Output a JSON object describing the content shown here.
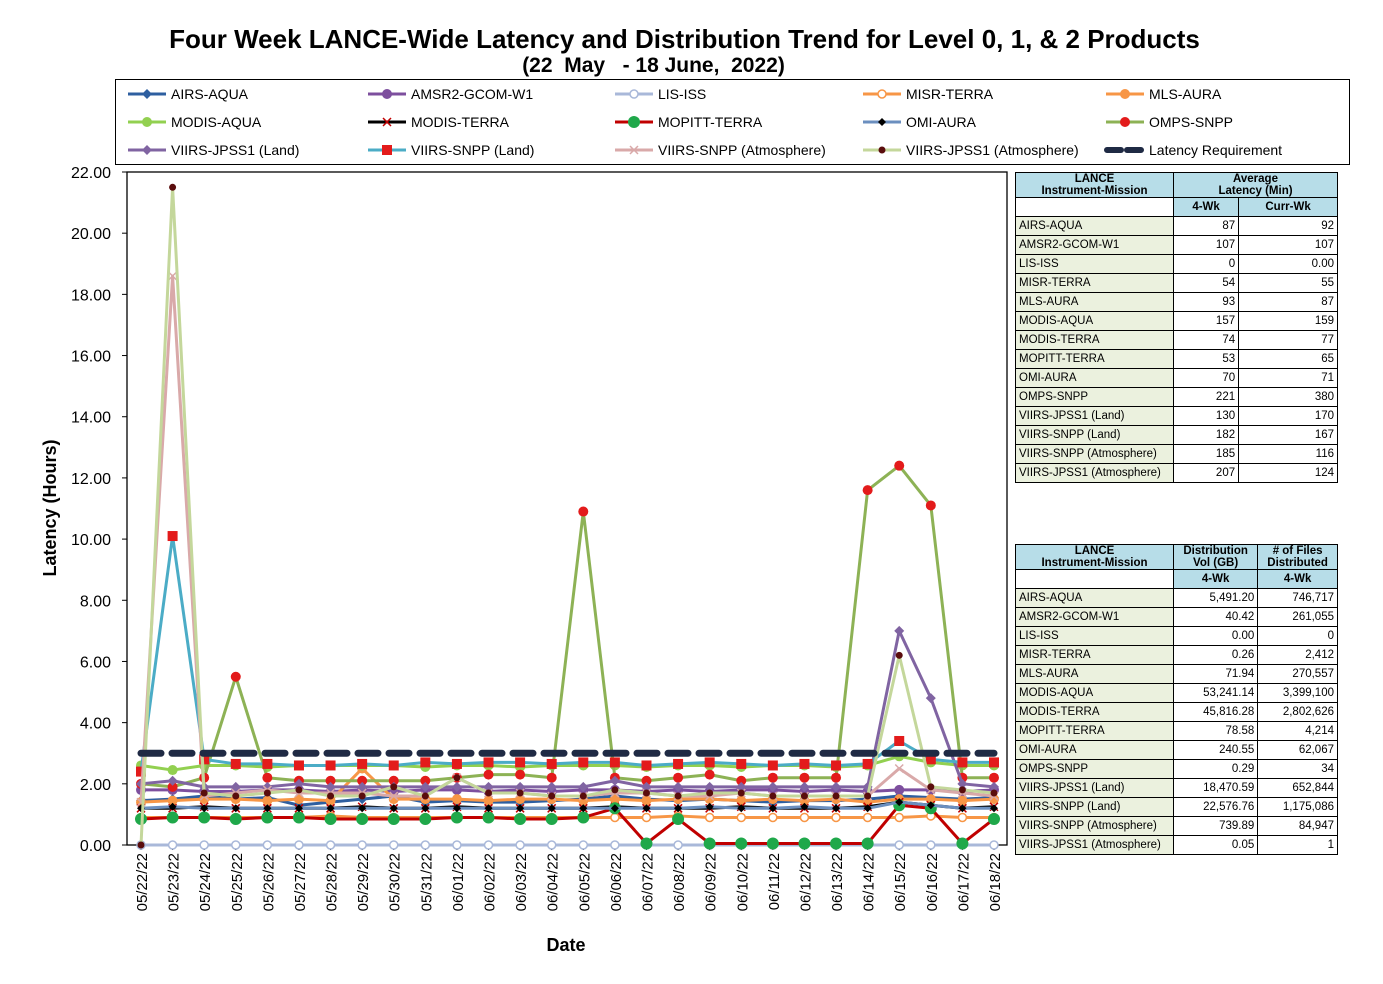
{
  "title": "Four Week LANCE-Wide Latency and Distribution Trend for Level 0, 1, & 2 Products",
  "subtitle": "(22  May   - 18 June,  2022)",
  "chart_data": {
    "type": "line",
    "xlabel": "Date",
    "ylabel": "Latency (Hours)",
    "ylim": [
      0,
      22
    ],
    "yticks": [
      "0.00",
      "2.00",
      "4.00",
      "6.00",
      "8.00",
      "10.00",
      "12.00",
      "14.00",
      "16.00",
      "18.00",
      "20.00",
      "22.00"
    ],
    "categories": [
      "05/22/22",
      "05/23/22",
      "05/24/22",
      "05/25/22",
      "05/26/22",
      "05/27/22",
      "05/28/22",
      "05/29/22",
      "05/30/22",
      "05/31/22",
      "06/01/22",
      "06/02/22",
      "06/03/22",
      "06/04/22",
      "06/05/22",
      "06/06/22",
      "06/07/22",
      "06/08/22",
      "06/09/22",
      "06/10/22",
      "06/11/22",
      "06/12/22",
      "06/13/22",
      "06/14/22",
      "06/15/22",
      "06/16/22",
      "06/17/22",
      "06/18/22"
    ],
    "grid": false,
    "legend_position": "top",
    "series": [
      {
        "name": "AIRS-AQUA",
        "color": "#2e5fa0",
        "marker": "diamond",
        "values": [
          1.45,
          1.5,
          1.6,
          1.5,
          1.55,
          1.3,
          1.4,
          1.5,
          1.6,
          1.4,
          1.45,
          1.4,
          1.4,
          1.45,
          1.5,
          1.6,
          1.5,
          1.45,
          1.5,
          1.45,
          1.4,
          1.45,
          1.45,
          1.5,
          1.6,
          1.55,
          1.5,
          1.55
        ]
      },
      {
        "name": "AMSR2-GCOM-W1",
        "color": "#7d4f9e",
        "marker": "circle",
        "values": [
          1.8,
          1.8,
          1.75,
          1.75,
          1.8,
          1.8,
          1.75,
          1.8,
          1.75,
          1.8,
          1.8,
          1.75,
          1.8,
          1.75,
          1.8,
          1.8,
          1.75,
          1.8,
          1.75,
          1.8,
          1.8,
          1.75,
          1.8,
          1.75,
          1.8,
          1.8,
          1.75,
          1.8
        ]
      },
      {
        "name": "LIS-ISS",
        "color": "#a9b8d9",
        "marker": "circle-open",
        "values": [
          0,
          0,
          0,
          0,
          0,
          0,
          0,
          0,
          0,
          0,
          0,
          0,
          0,
          0,
          0,
          0,
          0,
          0,
          0,
          0,
          0,
          0,
          0,
          0,
          0,
          0,
          0,
          0
        ]
      },
      {
        "name": "MISR-TERRA",
        "color": "#f79646",
        "marker": "circle-open",
        "values": [
          0.9,
          0.9,
          0.9,
          0.9,
          0.9,
          0.9,
          0.95,
          0.9,
          0.9,
          0.9,
          0.9,
          0.9,
          0.9,
          0.9,
          0.9,
          0.9,
          0.9,
          0.95,
          0.9,
          0.9,
          0.9,
          0.9,
          0.9,
          0.9,
          0.9,
          0.95,
          0.9,
          0.9
        ]
      },
      {
        "name": "MLS-AURA",
        "color": "#f79646",
        "marker": "circle",
        "values": [
          1.4,
          1.45,
          1.5,
          1.5,
          1.45,
          1.5,
          1.45,
          2.5,
          1.5,
          1.5,
          1.5,
          1.45,
          1.5,
          1.5,
          1.45,
          1.5,
          1.45,
          1.5,
          1.5,
          1.45,
          1.5,
          1.45,
          1.5,
          1.4,
          1.5,
          1.5,
          1.45,
          1.5
        ]
      },
      {
        "name": "MODIS-AQUA",
        "color": "#92d050",
        "marker": "circle",
        "values": [
          2.6,
          2.45,
          2.6,
          2.6,
          2.55,
          2.6,
          2.6,
          2.6,
          2.6,
          2.55,
          2.6,
          2.6,
          2.55,
          2.6,
          2.6,
          2.6,
          2.55,
          2.6,
          2.6,
          2.55,
          2.6,
          2.6,
          2.55,
          2.6,
          2.9,
          2.7,
          2.6,
          2.6
        ]
      },
      {
        "name": "MODIS-TERRA",
        "color": "#000000",
        "marker": "x",
        "values": [
          1.2,
          1.2,
          1.25,
          1.2,
          1.2,
          1.2,
          1.2,
          1.25,
          1.2,
          1.2,
          1.25,
          1.2,
          1.2,
          1.2,
          1.2,
          1.25,
          1.2,
          1.2,
          1.2,
          1.25,
          1.2,
          1.2,
          1.2,
          1.25,
          1.4,
          1.3,
          1.2,
          1.25
        ]
      },
      {
        "name": "MOPITT-TERRA",
        "color": "#c00000",
        "marker": "circle-green",
        "values": [
          0.85,
          0.9,
          0.9,
          0.85,
          0.9,
          0.9,
          0.85,
          0.85,
          0.85,
          0.85,
          0.9,
          0.9,
          0.85,
          0.85,
          0.9,
          1.2,
          0.05,
          0.85,
          0.05,
          0.05,
          0.05,
          0.05,
          0.05,
          0.05,
          1.3,
          1.2,
          0.05,
          0.85
        ]
      },
      {
        "name": "OMI-AURA",
        "color": "#6b8fbf",
        "marker": "diamond-black",
        "values": [
          1.2,
          1.25,
          1.2,
          1.2,
          1.2,
          1.2,
          1.2,
          1.2,
          1.2,
          1.2,
          1.2,
          1.2,
          1.2,
          1.2,
          1.2,
          1.2,
          1.2,
          1.2,
          1.25,
          1.2,
          1.2,
          1.25,
          1.2,
          1.2,
          1.4,
          1.3,
          1.2,
          1.2
        ]
      },
      {
        "name": "OMPS-SNPP",
        "color": "#8db255",
        "marker": "circle-red",
        "values": [
          2.0,
          1.9,
          2.2,
          5.5,
          2.2,
          2.1,
          2.1,
          2.1,
          2.1,
          2.1,
          2.2,
          2.3,
          2.3,
          2.2,
          10.9,
          2.2,
          2.1,
          2.2,
          2.3,
          2.1,
          2.2,
          2.2,
          2.2,
          11.6,
          12.4,
          11.1,
          2.2,
          2.2
        ]
      },
      {
        "name": "VIIRS-JPSS1 (Land)",
        "color": "#8064a2",
        "marker": "diamond",
        "values": [
          2.0,
          2.1,
          1.9,
          1.9,
          1.9,
          2.0,
          1.9,
          1.9,
          1.9,
          1.9,
          1.9,
          1.9,
          1.9,
          1.9,
          1.9,
          2.1,
          1.9,
          1.9,
          1.9,
          1.9,
          1.9,
          1.9,
          1.9,
          1.9,
          7.0,
          4.8,
          2.0,
          1.9
        ]
      },
      {
        "name": "VIIRS-SNPP (Land)",
        "color": "#4bacc6",
        "marker": "square-red",
        "values": [
          2.4,
          10.1,
          2.8,
          2.65,
          2.65,
          2.6,
          2.6,
          2.65,
          2.6,
          2.7,
          2.65,
          2.7,
          2.7,
          2.65,
          2.7,
          2.7,
          2.6,
          2.65,
          2.7,
          2.65,
          2.6,
          2.65,
          2.6,
          2.65,
          3.4,
          2.8,
          2.7,
          2.7
        ]
      },
      {
        "name": "VIIRS-SNPP (Atmosphere)",
        "color": "#d9a9a9",
        "marker": "x",
        "values": [
          1.4,
          18.6,
          1.6,
          1.7,
          1.8,
          1.7,
          1.7,
          1.7,
          1.6,
          1.6,
          2.2,
          1.7,
          1.7,
          1.6,
          1.6,
          1.7,
          1.7,
          1.6,
          1.6,
          1.7,
          1.6,
          1.6,
          1.6,
          1.6,
          2.5,
          1.8,
          1.7,
          1.6
        ]
      },
      {
        "name": "VIIRS-JPSS1 (Atmosphere)",
        "color": "#c4d79b",
        "marker": "circle-dark",
        "values": [
          0.0,
          21.5,
          1.7,
          1.6,
          1.7,
          1.8,
          1.6,
          1.6,
          1.9,
          1.6,
          2.2,
          1.7,
          1.7,
          1.6,
          1.6,
          1.8,
          1.7,
          1.6,
          1.7,
          1.7,
          1.6,
          1.6,
          1.6,
          1.6,
          6.2,
          1.9,
          1.8,
          1.7
        ]
      },
      {
        "name": "Latency Requirement",
        "color": "#1f2a44",
        "marker": "dash",
        "values": [
          3,
          3,
          3,
          3,
          3,
          3,
          3,
          3,
          3,
          3,
          3,
          3,
          3,
          3,
          3,
          3,
          3,
          3,
          3,
          3,
          3,
          3,
          3,
          3,
          3,
          3,
          3,
          3
        ]
      }
    ]
  },
  "latency_table": {
    "header_col1": [
      "LANCE",
      "Instrument-Mission"
    ],
    "header_col2": [
      "Average",
      "Latency (Min)"
    ],
    "sub_4wk": "4-Wk",
    "sub_curr": "Curr-Wk",
    "rows": [
      {
        "name": "AIRS-AQUA",
        "wk4": "87",
        "curr": "92"
      },
      {
        "name": "AMSR2-GCOM-W1",
        "wk4": "107",
        "curr": "107"
      },
      {
        "name": "LIS-ISS",
        "wk4": "0",
        "curr": "0.00"
      },
      {
        "name": "MISR-TERRA",
        "wk4": "54",
        "curr": "55"
      },
      {
        "name": "MLS-AURA",
        "wk4": "93",
        "curr": "87"
      },
      {
        "name": "MODIS-AQUA",
        "wk4": "157",
        "curr": "159"
      },
      {
        "name": "MODIS-TERRA",
        "wk4": "74",
        "curr": "77"
      },
      {
        "name": "MOPITT-TERRA",
        "wk4": "53",
        "curr": "65"
      },
      {
        "name": "OMI-AURA",
        "wk4": "70",
        "curr": "71"
      },
      {
        "name": "OMPS-SNPP",
        "wk4": "221",
        "curr": "380"
      },
      {
        "name": "VIIRS-JPSS1 (Land)",
        "wk4": "130",
        "curr": "170"
      },
      {
        "name": "VIIRS-SNPP (Land)",
        "wk4": "182",
        "curr": "167"
      },
      {
        "name": "VIIRS-SNPP (Atmosphere)",
        "wk4": "185",
        "curr": "116"
      },
      {
        "name": "VIIRS-JPSS1 (Atmosphere)",
        "wk4": "207",
        "curr": "124"
      }
    ]
  },
  "distribution_table": {
    "header_col1": [
      "LANCE",
      "Instrument-Mission"
    ],
    "header_col2": [
      "Distribution",
      "Vol (GB)"
    ],
    "header_col3": [
      "# of Files",
      "Distributed"
    ],
    "sub_4wk": "4-Wk",
    "rows": [
      {
        "name": "AIRS-AQUA",
        "vol": "5,491.20",
        "files": "746,717"
      },
      {
        "name": "AMSR2-GCOM-W1",
        "vol": "40.42",
        "files": "261,055"
      },
      {
        "name": "LIS-ISS",
        "vol": "0.00",
        "files": "0"
      },
      {
        "name": "MISR-TERRA",
        "vol": "0.26",
        "files": "2,412"
      },
      {
        "name": "MLS-AURA",
        "vol": "71.94",
        "files": "270,557"
      },
      {
        "name": "MODIS-AQUA",
        "vol": "53,241.14",
        "files": "3,399,100"
      },
      {
        "name": "MODIS-TERRA",
        "vol": "45,816.28",
        "files": "2,802,626"
      },
      {
        "name": "MOPITT-TERRA",
        "vol": "78.58",
        "files": "4,214"
      },
      {
        "name": "OMI-AURA",
        "vol": "240.55",
        "files": "62,067"
      },
      {
        "name": "OMPS-SNPP",
        "vol": "0.29",
        "files": "34"
      },
      {
        "name": "VIIRS-JPSS1 (Land)",
        "vol": "18,470.59",
        "files": "652,844"
      },
      {
        "name": "VIIRS-SNPP (Land)",
        "vol": "22,576.76",
        "files": "1,175,086"
      },
      {
        "name": "VIIRS-SNPP (Atmosphere)",
        "vol": "739.89",
        "files": "84,947"
      },
      {
        "name": "VIIRS-JPSS1 (Atmosphere)",
        "vol": "0.05",
        "files": "1"
      }
    ]
  }
}
